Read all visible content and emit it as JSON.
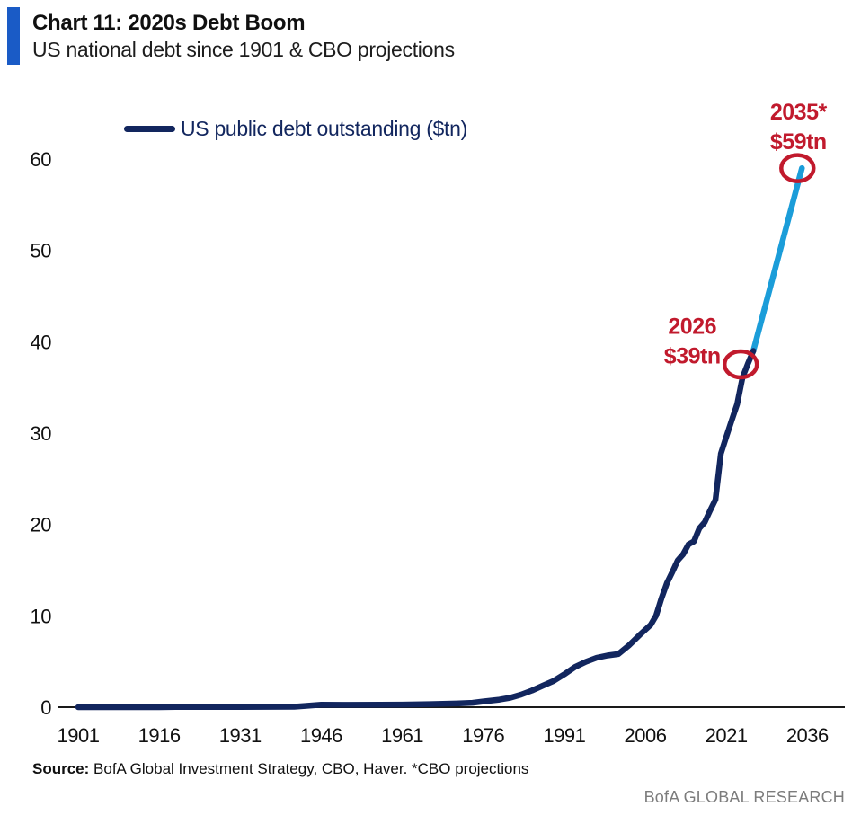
{
  "header": {
    "title": "Chart 11: 2020s Debt Boom",
    "subtitle": "US national debt since 1901 & CBO projections",
    "accent_color": "#1A5BC6"
  },
  "legend": {
    "label": "US public debt outstanding ($tn)"
  },
  "chart_data": {
    "type": "line",
    "title": "Chart 11: 2020s Debt Boom",
    "subtitle": "US national debt since 1901 & CBO projections",
    "xlabel": "",
    "ylabel": "",
    "xlim": [
      1901,
      2036
    ],
    "ylim": [
      0,
      60
    ],
    "grid": false,
    "legend_position": "top-left",
    "x_ticks": [
      1901,
      1916,
      1931,
      1946,
      1961,
      1976,
      1991,
      2006,
      2021,
      2036
    ],
    "y_ticks": [
      0,
      10,
      20,
      30,
      40,
      50,
      60
    ],
    "axis_color": "#1a1a1a",
    "series": [
      {
        "name": "US public debt outstanding ($tn)",
        "color": "#12265E",
        "x": [
          1901,
          1916,
          1919,
          1931,
          1941,
          1943,
          1946,
          1951,
          1957,
          1961,
          1966,
          1971,
          1974,
          1976,
          1979,
          1981,
          1983,
          1985,
          1987,
          1989,
          1991,
          1993,
          1995,
          1997,
          1999,
          2001,
          2003,
          2005,
          2007,
          2008,
          2009,
          2010,
          2011,
          2012,
          2013,
          2014,
          2015,
          2016,
          2017,
          2018,
          2019,
          2020,
          2021,
          2022,
          2023,
          2024,
          2025,
          2026
        ],
        "y": [
          0.0,
          0.0,
          0.03,
          0.02,
          0.05,
          0.14,
          0.27,
          0.26,
          0.27,
          0.29,
          0.33,
          0.4,
          0.48,
          0.63,
          0.83,
          1.03,
          1.38,
          1.82,
          2.35,
          2.86,
          3.6,
          4.41,
          4.97,
          5.41,
          5.66,
          5.81,
          6.78,
          7.93,
          9.01,
          10.02,
          11.91,
          13.56,
          14.79,
          16.07,
          16.74,
          17.82,
          18.15,
          19.57,
          20.24,
          21.52,
          22.72,
          27.75,
          29.62,
          31.42,
          33.17,
          36.1,
          37.6,
          39.0
        ]
      },
      {
        "name": "CBO projection",
        "color": "#1B9DD9",
        "x": [
          2026,
          2035
        ],
        "y": [
          39,
          59
        ]
      }
    ],
    "annotations": [
      {
        "label": "2026",
        "value_label": "$39tn",
        "year": 2026,
        "value": 39,
        "color": "#C11A2D",
        "circled": true,
        "placement": "left"
      },
      {
        "label": "2035*",
        "value_label": "$59tn",
        "year": 2035,
        "value": 59,
        "color": "#C11A2D",
        "circled": true,
        "placement": "above"
      }
    ]
  },
  "source": {
    "label": "Source:",
    "text": " BofA Global Investment Strategy, CBO, Haver. *CBO projections"
  },
  "footer": {
    "brand": "BofA GLOBAL RESEARCH"
  }
}
